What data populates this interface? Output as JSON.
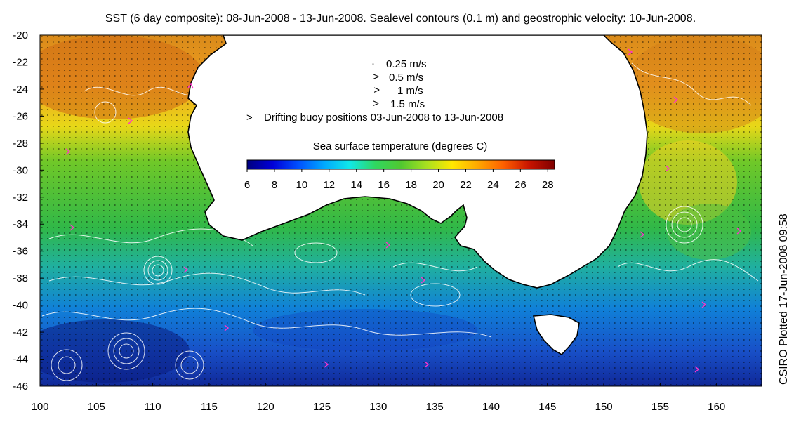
{
  "title": "SST (6 day composite): 08-Jun-2008 - 13-Jun-2008. Sealevel contours (0.1 m) and geostrophic velocity: 10-Jun-2008.",
  "credit": "CSIRO Plotted 17-Jun-2008 09:58",
  "map": {
    "lon_range": [
      100,
      164
    ],
    "lat_range": [
      -46,
      -20
    ],
    "lon_ticks": [
      "100",
      "105",
      "110",
      "115",
      "120",
      "125",
      "130",
      "135",
      "140",
      "145",
      "150",
      "155",
      "160"
    ],
    "lat_ticks": [
      "-20",
      "-22",
      "-24",
      "-26",
      "-28",
      "-30",
      "-32",
      "-34",
      "-36",
      "-38",
      "-40",
      "-42",
      "-44",
      "-46"
    ],
    "land_color": "#ffffff",
    "coast_color": "#000000",
    "contour_color": "#ffffff",
    "buoy_color": "#ff33cc"
  },
  "legend": {
    "vectors": [
      {
        "label": "0.25 m/s"
      },
      {
        "label": "0.5 m/s"
      },
      {
        "label": "1 m/s"
      },
      {
        "label": "1.5 m/s"
      }
    ],
    "buoy_symbol": ">",
    "buoy_label": "Drifting buoy positions 03-Jun-2008 to 13-Jun-2008"
  },
  "colorbar": {
    "title": "Sea surface temperature (degrees C)",
    "ticks": [
      "6",
      "8",
      "10",
      "12",
      "14",
      "16",
      "18",
      "20",
      "22",
      "24",
      "26",
      "28"
    ],
    "range": [
      6,
      28.5
    ],
    "colormap": [
      "#00007f",
      "#0000d8",
      "#0050ff",
      "#00a8ff",
      "#10e8e8",
      "#30d860",
      "#50c830",
      "#a8e020",
      "#ffe800",
      "#ffa800",
      "#ff6000",
      "#c81400",
      "#7f0000"
    ]
  }
}
